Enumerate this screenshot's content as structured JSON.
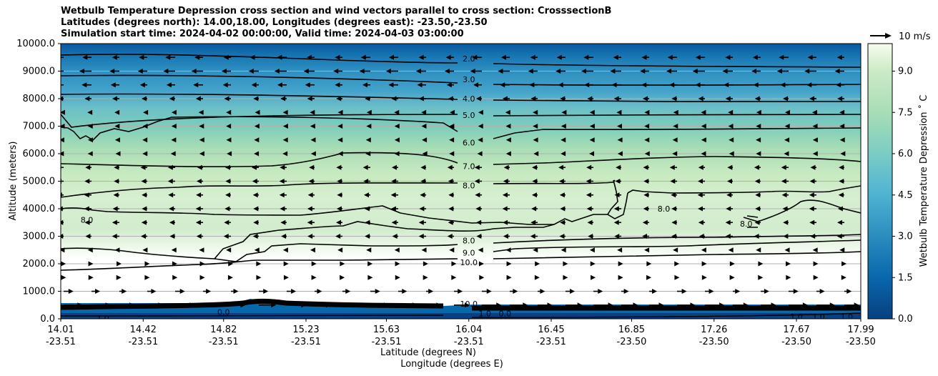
{
  "chart_data": {
    "type": "heatmap",
    "title_lines": [
      "Wetbulb Temperature Depression cross section and wind vectors parallel to cross section: CrosssectionB",
      "Latitudes (degrees north): 14.00,18.00, Longitudes (degrees east): -23.50,-23.50",
      "Simulation start time: 2024-04-02 00:00:00, Valid time: 2024-04-03 03:00:00"
    ],
    "xlabel": "Latitude (degrees N)",
    "xlabel2": "Longitude (degrees E)",
    "ylabel": "Altitude (meters)",
    "ylim": [
      0,
      10000
    ],
    "y_ticks": [
      "0.0",
      "1000.0",
      "2000.0",
      "3000.0",
      "4000.0",
      "5000.0",
      "6000.0",
      "7000.0",
      "8000.0",
      "9000.0",
      "10000.0"
    ],
    "x_tick_values": [
      14.01,
      14.42,
      14.82,
      15.23,
      15.63,
      16.04,
      16.45,
      16.85,
      17.26,
      17.67,
      17.99
    ],
    "x_ticks_lat": [
      "14.01",
      "14.42",
      "14.82",
      "15.23",
      "15.63",
      "16.04",
      "16.45",
      "16.85",
      "17.26",
      "17.67",
      "17.99"
    ],
    "x_ticks_lon": [
      "-23.51",
      "-23.51",
      "-23.51",
      "-23.51",
      "-23.51",
      "-23.51",
      "-23.51",
      "-23.50",
      "-23.50",
      "-23.50",
      "-23.50"
    ],
    "xlim": [
      14.01,
      17.99
    ],
    "grid": "horizontal",
    "colorbar": {
      "label": "Wetbulb Temperature Depression ˚ C",
      "range": [
        0,
        10
      ],
      "ticks": [
        "0.0",
        "1.5",
        "3.0",
        "4.5",
        "6.0",
        "7.5",
        "9.0"
      ],
      "tick_values": [
        0,
        1.5,
        3,
        4.5,
        6,
        7.5,
        9
      ]
    },
    "contour_labels": [
      {
        "text": "2.0",
        "lat": 16.04,
        "alt": 9450
      },
      {
        "text": "3.0",
        "lat": 16.04,
        "alt": 8700
      },
      {
        "text": "4.0",
        "lat": 16.04,
        "alt": 8000
      },
      {
        "text": "5.0",
        "lat": 16.04,
        "alt": 7400
      },
      {
        "text": "6.0",
        "lat": 16.04,
        "alt": 6400
      },
      {
        "text": "7.0",
        "lat": 16.04,
        "alt": 5550
      },
      {
        "text": "8.0",
        "lat": 16.04,
        "alt": 4850
      },
      {
        "text": "8.0",
        "lat": 14.14,
        "alt": 3600
      },
      {
        "text": "8.0",
        "lat": 16.04,
        "alt": 2850
      },
      {
        "text": "9.0",
        "lat": 16.04,
        "alt": 2400
      },
      {
        "text": "10.0",
        "lat": 16.04,
        "alt": 2050
      },
      {
        "text": "8.0",
        "lat": 17.01,
        "alt": 4000
      },
      {
        "text": "8.0",
        "lat": 17.42,
        "alt": 3450
      },
      {
        "text": "10.0",
        "lat": 16.04,
        "alt": 550
      },
      {
        "text": "1.0",
        "lat": 14.22,
        "alt": 30
      },
      {
        "text": "0.0",
        "lat": 14.82,
        "alt": 250
      },
      {
        "text": "1.0",
        "lat": 16.12,
        "alt": 200
      },
      {
        "text": "0.0",
        "lat": 16.22,
        "alt": 200
      },
      {
        "text": "1.0",
        "lat": 17.67,
        "alt": 80
      },
      {
        "text": "1.0",
        "lat": 17.78,
        "alt": 80
      },
      {
        "text": "1.0",
        "lat": 17.92,
        "alt": 80
      }
    ],
    "wind_rows": [
      {
        "alt": 9500,
        "u": -4
      },
      {
        "alt": 9000,
        "u": -5
      },
      {
        "alt": 8500,
        "u": -4
      },
      {
        "alt": 8000,
        "u": -3
      },
      {
        "alt": 7500,
        "u": -2
      },
      {
        "alt": 7000,
        "u": -2
      },
      {
        "alt": 6500,
        "u": -2
      },
      {
        "alt": 6000,
        "u": -2
      },
      {
        "alt": 5500,
        "u": -3
      },
      {
        "alt": 5000,
        "u": -3
      },
      {
        "alt": 4500,
        "u": -3
      },
      {
        "alt": 4000,
        "u": -3
      },
      {
        "alt": 3500,
        "u": -3
      },
      {
        "alt": 3000,
        "u": -3
      },
      {
        "alt": 2500,
        "u": -2
      },
      {
        "alt": 2000,
        "u": 1
      },
      {
        "alt": 1500,
        "u": 1
      },
      {
        "alt": 1000,
        "u": 4
      },
      {
        "alt": 500,
        "u": 8
      }
    ],
    "wind_key_label": "10 m/s",
    "wind_key_speed": 10
  }
}
